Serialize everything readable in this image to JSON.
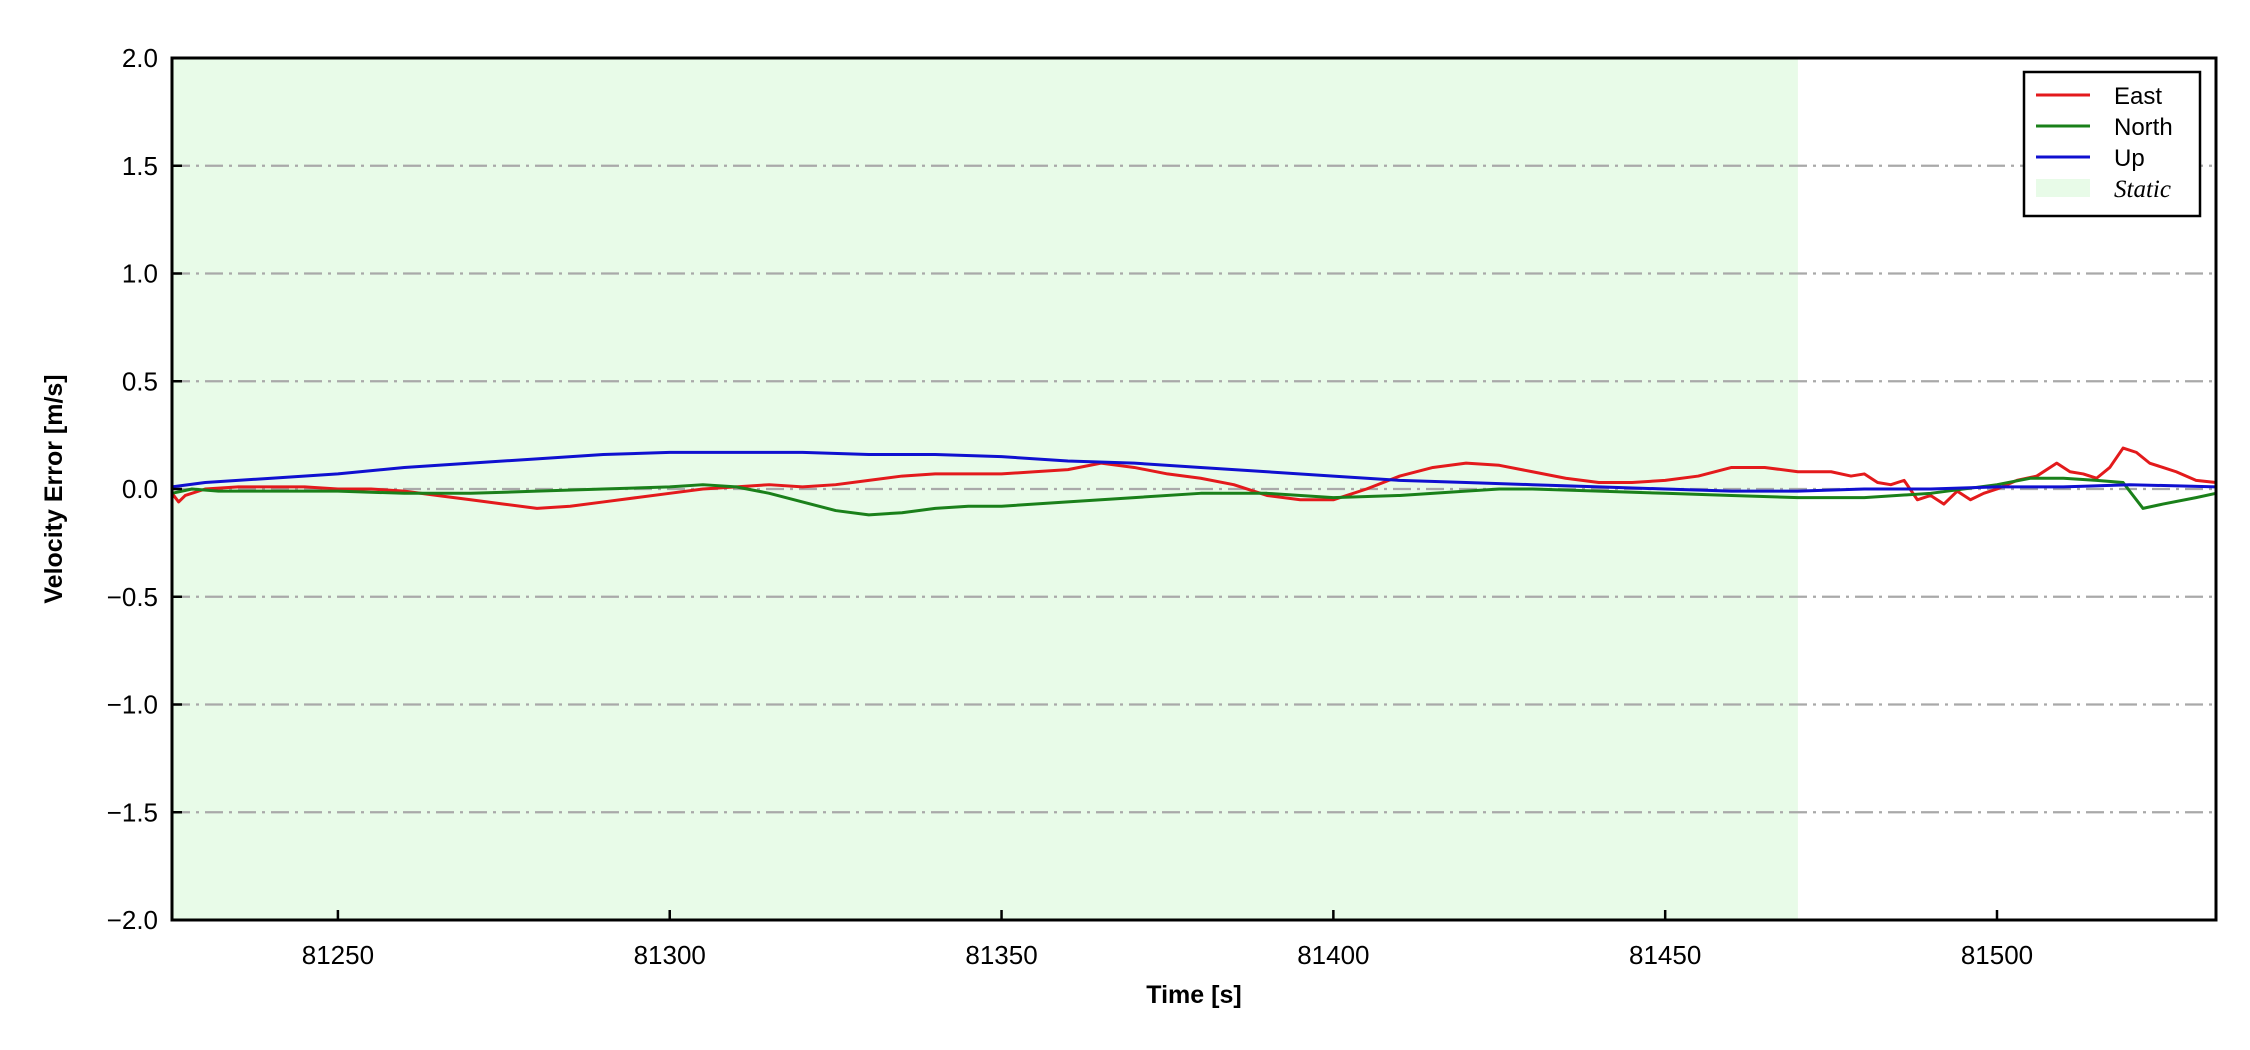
{
  "chart_data": {
    "type": "line",
    "xlabel": "Time [s]",
    "ylabel": "Velocity Error [m/s]",
    "xlim": [
      81225,
      81533
    ],
    "ylim": [
      -2.0,
      2.0
    ],
    "xticks": [
      81250,
      81300,
      81350,
      81400,
      81450,
      81500
    ],
    "yticks": [
      -2.0,
      -1.5,
      -1.0,
      -0.5,
      0.0,
      0.5,
      1.0,
      1.5,
      2.0
    ],
    "ytick_labels": [
      "−2.0",
      "−1.5",
      "−1.0",
      "−0.5",
      "0.0",
      "0.5",
      "1.0",
      "1.5",
      "2.0"
    ],
    "grid": "y",
    "legend_position": "top-right",
    "shaded_regions": [
      {
        "name": "Static",
        "x_start": 81225,
        "x_end": 81470,
        "color": "#e8fbe8"
      }
    ],
    "series": [
      {
        "name": "East",
        "color": "#e31a1c",
        "x": [
          81225,
          81226,
          81227,
          81230,
          81235,
          81240,
          81245,
          81250,
          81255,
          81260,
          81265,
          81270,
          81275,
          81280,
          81285,
          81290,
          81295,
          81300,
          81305,
          81310,
          81315,
          81320,
          81325,
          81330,
          81335,
          81340,
          81345,
          81350,
          81355,
          81360,
          81365,
          81370,
          81375,
          81380,
          81385,
          81390,
          81395,
          81400,
          81405,
          81410,
          81415,
          81420,
          81425,
          81430,
          81435,
          81440,
          81445,
          81450,
          81455,
          81460,
          81465,
          81470,
          81475,
          81478,
          81480,
          81482,
          81484,
          81486,
          81488,
          81490,
          81492,
          81494,
          81496,
          81498,
          81500,
          81503,
          81506,
          81509,
          81511,
          81513,
          81515,
          81517,
          81519,
          81521,
          81523,
          81525,
          81527,
          81530,
          81533
        ],
        "values": [
          -0.02,
          -0.06,
          -0.03,
          0.0,
          0.01,
          0.01,
          0.01,
          0.0,
          0.0,
          -0.01,
          -0.03,
          -0.05,
          -0.07,
          -0.09,
          -0.08,
          -0.06,
          -0.04,
          -0.02,
          0.0,
          0.01,
          0.02,
          0.01,
          0.02,
          0.04,
          0.06,
          0.07,
          0.07,
          0.07,
          0.08,
          0.09,
          0.12,
          0.1,
          0.07,
          0.05,
          0.02,
          -0.03,
          -0.05,
          -0.05,
          0.0,
          0.06,
          0.1,
          0.12,
          0.11,
          0.08,
          0.05,
          0.03,
          0.03,
          0.04,
          0.06,
          0.1,
          0.1,
          0.08,
          0.08,
          0.06,
          0.07,
          0.03,
          0.02,
          0.04,
          -0.05,
          -0.03,
          -0.07,
          -0.01,
          -0.05,
          -0.02,
          0.0,
          0.04,
          0.06,
          0.12,
          0.08,
          0.07,
          0.05,
          0.1,
          0.19,
          0.17,
          0.12,
          0.1,
          0.08,
          0.04,
          0.03
        ]
      },
      {
        "name": "North",
        "color": "#1a801a",
        "x": [
          81225,
          81228,
          81232,
          81240,
          81250,
          81260,
          81270,
          81280,
          81290,
          81300,
          81305,
          81310,
          81315,
          81320,
          81325,
          81330,
          81335,
          81340,
          81345,
          81350,
          81360,
          81370,
          81380,
          81390,
          81400,
          81410,
          81420,
          81425,
          81430,
          81440,
          81450,
          81460,
          81470,
          81480,
          81490,
          81500,
          81505,
          81510,
          81515,
          81519,
          81522,
          81525,
          81530,
          81533
        ],
        "values": [
          -0.02,
          0.0,
          -0.01,
          -0.01,
          -0.01,
          -0.02,
          -0.02,
          -0.01,
          0.0,
          0.01,
          0.02,
          0.01,
          -0.02,
          -0.06,
          -0.1,
          -0.12,
          -0.11,
          -0.09,
          -0.08,
          -0.08,
          -0.06,
          -0.04,
          -0.02,
          -0.02,
          -0.04,
          -0.03,
          -0.01,
          0.0,
          0.0,
          -0.01,
          -0.02,
          -0.03,
          -0.04,
          -0.04,
          -0.02,
          0.02,
          0.05,
          0.05,
          0.04,
          0.03,
          -0.09,
          -0.07,
          -0.04,
          -0.02
        ]
      },
      {
        "name": "Up",
        "color": "#1010d0",
        "x": [
          81225,
          81230,
          81240,
          81250,
          81260,
          81270,
          81280,
          81290,
          81300,
          81310,
          81315,
          81320,
          81330,
          81340,
          81350,
          81360,
          81370,
          81380,
          81390,
          81400,
          81410,
          81420,
          81430,
          81440,
          81450,
          81460,
          81470,
          81480,
          81490,
          81500,
          81510,
          81520,
          81533
        ],
        "values": [
          0.01,
          0.03,
          0.05,
          0.07,
          0.1,
          0.12,
          0.14,
          0.16,
          0.17,
          0.17,
          0.17,
          0.17,
          0.16,
          0.16,
          0.15,
          0.13,
          0.12,
          0.1,
          0.08,
          0.06,
          0.04,
          0.03,
          0.02,
          0.01,
          0.0,
          -0.01,
          -0.01,
          0.0,
          0.0,
          0.01,
          0.01,
          0.02,
          0.01
        ]
      }
    ]
  }
}
